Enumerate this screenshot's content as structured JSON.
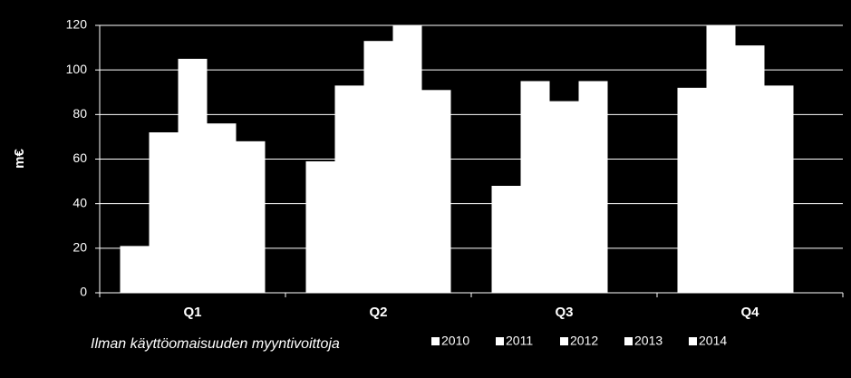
{
  "chart_data": {
    "type": "bar",
    "y_label": "m€",
    "note": "Ilman käyttöomaisuuden myyntivoittoja",
    "categories": [
      "Q1",
      "Q2",
      "Q3",
      "Q4"
    ],
    "series": [
      {
        "name": "2010",
        "color": "#ffffff",
        "values": [
          21,
          59,
          48,
          92
        ]
      },
      {
        "name": "2011",
        "color": "#ffffff",
        "values": [
          72,
          93,
          95,
          120
        ]
      },
      {
        "name": "2012",
        "color": "#ffffff",
        "values": [
          105,
          113,
          86,
          111
        ]
      },
      {
        "name": "2013",
        "color": "#ffffff",
        "values": [
          76,
          120,
          95,
          93
        ]
      },
      {
        "name": "2014",
        "color": "#ffffff",
        "values": [
          68,
          91,
          null,
          null
        ]
      }
    ],
    "ylim": [
      0,
      120
    ],
    "yticks": [
      0,
      20,
      40,
      60,
      80,
      100,
      120
    ],
    "grid": true,
    "legend": "bottom"
  }
}
